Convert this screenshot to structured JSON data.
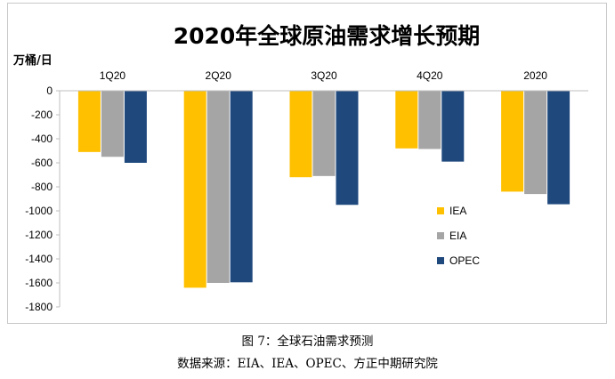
{
  "chart_data": {
    "type": "bar",
    "title": "2020年全球原油需求增长预期",
    "ylabel": "万桶/日",
    "xlabel": "",
    "categories": [
      "1Q20",
      "2Q20",
      "3Q20",
      "4Q20",
      "2020"
    ],
    "ylim": [
      -1800,
      0
    ],
    "yticks": [
      0,
      -200,
      -400,
      -600,
      -800,
      -1000,
      -1200,
      -1400,
      -1600,
      -1800
    ],
    "grid": false,
    "legend_position": "right",
    "series": [
      {
        "name": "IEA",
        "color": "#ffc000",
        "values": [
          -510,
          -1640,
          -720,
          -480,
          -840
        ]
      },
      {
        "name": "EIA",
        "color": "#a5a5a5",
        "values": [
          -550,
          -1600,
          -710,
          -485,
          -860
        ]
      },
      {
        "name": "OPEC",
        "color": "#1f497d",
        "values": [
          -600,
          -1595,
          -950,
          -590,
          -945
        ]
      }
    ]
  },
  "caption": {
    "figure": "图 7：全球石油需求预测",
    "source": "数据来源：EIA、IEA、OPEC、方正中期研究院"
  }
}
